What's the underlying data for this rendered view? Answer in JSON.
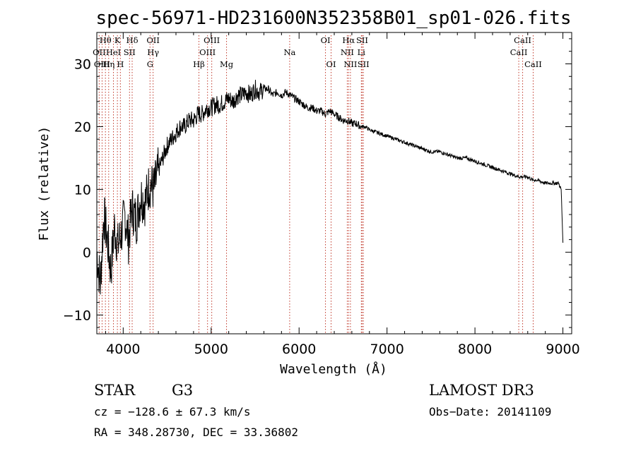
{
  "chart_data": {
    "type": "line",
    "title": "spec-56971-HD231600N352358B01_sp01-026.fits",
    "xlabel": "Wavelength (Å)",
    "ylabel": "Flux (relative)",
    "xlim": [
      3700,
      9100
    ],
    "ylim": [
      -13,
      35
    ],
    "xticks": [
      4000,
      5000,
      6000,
      7000,
      8000,
      9000
    ],
    "yticks": [
      -10,
      0,
      10,
      20,
      30
    ],
    "xtick_labels": [
      "4000",
      "5000",
      "6000",
      "7000",
      "8000",
      "9000"
    ],
    "ytick_labels": [
      "−10",
      "0",
      "10",
      "20",
      "30"
    ],
    "series": [
      {
        "name": "spectrum",
        "x": [
          3700,
          3740,
          3780,
          3820,
          3860,
          3900,
          3940,
          3980,
          4020,
          4060,
          4100,
          4150,
          4200,
          4250,
          4300,
          4350,
          4400,
          4450,
          4500,
          4550,
          4600,
          4650,
          4700,
          4750,
          4800,
          4850,
          4900,
          4950,
          5000,
          5050,
          5100,
          5150,
          5200,
          5250,
          5300,
          5350,
          5400,
          5450,
          5500,
          5550,
          5600,
          5650,
          5700,
          5750,
          5800,
          5850,
          5900,
          5950,
          6000,
          6050,
          6100,
          6150,
          6200,
          6250,
          6300,
          6350,
          6400,
          6450,
          6500,
          6550,
          6600,
          6650,
          6700,
          6750,
          6800,
          6900,
          7000,
          7100,
          7200,
          7300,
          7400,
          7500,
          7600,
          7700,
          7800,
          7900,
          8000,
          8100,
          8200,
          8300,
          8400,
          8500,
          8550,
          8600,
          8650,
          8700,
          8800,
          8900,
          8950,
          8980,
          9000
        ],
        "y": [
          0,
          -5,
          6,
          2,
          -3,
          4,
          1,
          3,
          6,
          2,
          7,
          5,
          9,
          8,
          11,
          10,
          13,
          15,
          17,
          18,
          19,
          20,
          20,
          21,
          21,
          22,
          22,
          23,
          23,
          23.5,
          23.5,
          24,
          24.5,
          24,
          25,
          25,
          25.5,
          25,
          26,
          25.5,
          26,
          26,
          25,
          25.5,
          25,
          25.5,
          25,
          24.5,
          24,
          23.5,
          23,
          23,
          22.5,
          22.5,
          22,
          22.5,
          22,
          21.5,
          21,
          21,
          20.5,
          20.5,
          20,
          20,
          19.5,
          19,
          18.5,
          18,
          17.5,
          17,
          16.5,
          16,
          16,
          15.5,
          15,
          15,
          14.5,
          14,
          13.5,
          13,
          12.5,
          12,
          12,
          12,
          11.5,
          11.5,
          11,
          11,
          11,
          10,
          1.5
        ]
      }
    ],
    "spectral_lines": [
      {
        "name": "Hθ",
        "wavelength": 3798,
        "row": 0
      },
      {
        "name": "K",
        "wavelength": 3934,
        "row": 0
      },
      {
        "name": "Hδ",
        "wavelength": 4102,
        "row": 0
      },
      {
        "name": "OII",
        "wavelength": 4340,
        "row": 0
      },
      {
        "name": "OIII",
        "wavelength": 5007,
        "row": 0
      },
      {
        "name": "OI",
        "wavelength": 6300,
        "row": 0
      },
      {
        "name": "Hα",
        "wavelength": 6563,
        "row": 0
      },
      {
        "name": "SII",
        "wavelength": 6717,
        "row": 0
      },
      {
        "name": "CaII",
        "wavelength": 8542,
        "row": 0
      },
      {
        "name": "OII",
        "wavelength": 3727,
        "row": 1
      },
      {
        "name": "HeI",
        "wavelength": 3889,
        "row": 1
      },
      {
        "name": "SII",
        "wavelength": 4072,
        "row": 1
      },
      {
        "name": "Hγ",
        "wavelength": 4340,
        "row": 1
      },
      {
        "name": "OIII",
        "wavelength": 4959,
        "row": 1
      },
      {
        "name": "Na",
        "wavelength": 5893,
        "row": 1
      },
      {
        "name": "NII",
        "wavelength": 6548,
        "row": 1
      },
      {
        "name": "Li",
        "wavelength": 6708,
        "row": 1
      },
      {
        "name": "CaII",
        "wavelength": 8498,
        "row": 1
      },
      {
        "name": "OIII",
        "wavelength": 3760,
        "row": 2
      },
      {
        "name": "Hη",
        "wavelength": 3835,
        "row": 2
      },
      {
        "name": "H",
        "wavelength": 3968,
        "row": 2
      },
      {
        "name": "G",
        "wavelength": 4305,
        "row": 2
      },
      {
        "name": "Hβ",
        "wavelength": 4861,
        "row": 2
      },
      {
        "name": "Mg",
        "wavelength": 5175,
        "row": 2
      },
      {
        "name": "OI",
        "wavelength": 6364,
        "row": 2
      },
      {
        "name": "NII",
        "wavelength": 6584,
        "row": 2
      },
      {
        "name": "SII",
        "wavelength": 6731,
        "row": 2
      },
      {
        "name": "CaII",
        "wavelength": 8662,
        "row": 2
      }
    ]
  },
  "info": {
    "class": "STAR",
    "subclass": "G3",
    "survey": "LAMOST DR3",
    "cz": "cz = −128.6 ± 67.3 km/s",
    "obs_date": "Obs−Date: 20141109",
    "radec": "RA = 348.28730, DEC =  33.36802"
  }
}
